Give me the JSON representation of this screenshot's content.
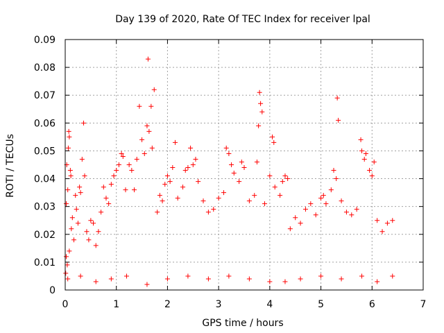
{
  "chart_data": {
    "type": "scatter",
    "title": "Day 139 of 2020, Rate Of TEC Index for receiver lpal",
    "xlabel": "GPS time / hours",
    "ylabel": "ROTI / TECUs",
    "xlim": [
      0,
      7
    ],
    "ylim": [
      0,
      0.09
    ],
    "xticks": [
      0,
      1,
      2,
      3,
      4,
      5,
      6,
      7
    ],
    "xtick_labels": [
      "0",
      "1",
      "2",
      "3",
      "4",
      "5",
      "6",
      "7"
    ],
    "yticks": [
      0,
      0.01,
      0.02,
      0.03,
      0.04,
      0.05,
      0.06,
      0.07,
      0.08,
      0.09
    ],
    "ytick_labels": [
      "0",
      "0.01",
      "0.02",
      "0.03",
      "0.04",
      "0.05",
      "0.06",
      "0.07",
      "0.08",
      "0.09"
    ],
    "grid": true,
    "marker": "plus",
    "series": [
      {
        "color": "#ff0000",
        "points": [
          [
            0.01,
            0.006
          ],
          [
            0.02,
            0.012
          ],
          [
            0.02,
            0.031
          ],
          [
            0.03,
            0.045
          ],
          [
            0.04,
            0.009
          ],
          [
            0.05,
            0.036
          ],
          [
            0.06,
            0.051
          ],
          [
            0.07,
            0.057
          ],
          [
            0.08,
            0.055
          ],
          [
            0.08,
            0.014
          ],
          [
            0.1,
            0.043
          ],
          [
            0.11,
            0.041
          ],
          [
            0.12,
            0.022
          ],
          [
            0.14,
            0.026
          ],
          [
            0.17,
            0.018
          ],
          [
            0.2,
            0.034
          ],
          [
            0.22,
            0.029
          ],
          [
            0.25,
            0.024
          ],
          [
            0.28,
            0.037
          ],
          [
            0.3,
            0.035
          ],
          [
            0.33,
            0.047
          ],
          [
            0.36,
            0.06
          ],
          [
            0.38,
            0.041
          ],
          [
            0.42,
            0.021
          ],
          [
            0.46,
            0.018
          ],
          [
            0.5,
            0.025
          ],
          [
            0.55,
            0.024
          ],
          [
            0.6,
            0.016
          ],
          [
            0.65,
            0.021
          ],
          [
            0.7,
            0.028
          ],
          [
            0.75,
            0.037
          ],
          [
            0.8,
            0.033
          ],
          [
            0.85,
            0.031
          ],
          [
            0.9,
            0.038
          ],
          [
            0.95,
            0.041
          ],
          [
            1.0,
            0.043
          ],
          [
            1.05,
            0.045
          ],
          [
            1.1,
            0.049
          ],
          [
            1.13,
            0.048
          ],
          [
            1.18,
            0.036
          ],
          [
            1.25,
            0.045
          ],
          [
            1.3,
            0.043
          ],
          [
            1.35,
            0.036
          ],
          [
            1.4,
            0.047
          ],
          [
            1.45,
            0.066
          ],
          [
            1.5,
            0.054
          ],
          [
            1.55,
            0.049
          ],
          [
            1.6,
            0.059
          ],
          [
            1.62,
            0.083
          ],
          [
            1.64,
            0.057
          ],
          [
            1.68,
            0.066
          ],
          [
            1.7,
            0.051
          ],
          [
            1.74,
            0.072
          ],
          [
            1.8,
            0.028
          ],
          [
            1.85,
            0.034
          ],
          [
            1.9,
            0.032
          ],
          [
            1.95,
            0.038
          ],
          [
            2.0,
            0.041
          ],
          [
            2.05,
            0.039
          ],
          [
            2.1,
            0.044
          ],
          [
            2.15,
            0.053
          ],
          [
            2.2,
            0.033
          ],
          [
            2.3,
            0.037
          ],
          [
            2.35,
            0.043
          ],
          [
            2.4,
            0.044
          ],
          [
            2.45,
            0.051
          ],
          [
            2.5,
            0.045
          ],
          [
            2.55,
            0.047
          ],
          [
            2.6,
            0.039
          ],
          [
            2.7,
            0.032
          ],
          [
            2.8,
            0.028
          ],
          [
            2.9,
            0.029
          ],
          [
            3.0,
            0.033
          ],
          [
            3.1,
            0.035
          ],
          [
            3.15,
            0.051
          ],
          [
            3.2,
            0.049
          ],
          [
            3.25,
            0.045
          ],
          [
            3.3,
            0.042
          ],
          [
            3.4,
            0.039
          ],
          [
            3.45,
            0.046
          ],
          [
            3.5,
            0.044
          ],
          [
            3.6,
            0.032
          ],
          [
            3.7,
            0.034
          ],
          [
            3.75,
            0.046
          ],
          [
            3.78,
            0.059
          ],
          [
            3.8,
            0.071
          ],
          [
            3.82,
            0.067
          ],
          [
            3.85,
            0.064
          ],
          [
            3.9,
            0.031
          ],
          [
            4.0,
            0.041
          ],
          [
            4.05,
            0.055
          ],
          [
            4.08,
            0.053
          ],
          [
            4.1,
            0.037
          ],
          [
            4.2,
            0.034
          ],
          [
            4.25,
            0.039
          ],
          [
            4.3,
            0.041
          ],
          [
            4.35,
            0.04
          ],
          [
            4.4,
            0.022
          ],
          [
            4.5,
            0.026
          ],
          [
            4.6,
            0.024
          ],
          [
            4.7,
            0.029
          ],
          [
            4.8,
            0.031
          ],
          [
            4.9,
            0.027
          ],
          [
            5.0,
            0.033
          ],
          [
            5.05,
            0.034
          ],
          [
            5.1,
            0.031
          ],
          [
            5.2,
            0.036
          ],
          [
            5.25,
            0.043
          ],
          [
            5.3,
            0.04
          ],
          [
            5.32,
            0.069
          ],
          [
            5.34,
            0.061
          ],
          [
            5.4,
            0.032
          ],
          [
            5.5,
            0.028
          ],
          [
            5.6,
            0.027
          ],
          [
            5.7,
            0.029
          ],
          [
            5.78,
            0.054
          ],
          [
            5.8,
            0.05
          ],
          [
            5.85,
            0.047
          ],
          [
            5.88,
            0.049
          ],
          [
            5.95,
            0.043
          ],
          [
            6.0,
            0.041
          ],
          [
            6.04,
            0.046
          ],
          [
            6.1,
            0.025
          ],
          [
            6.2,
            0.021
          ],
          [
            6.3,
            0.024
          ],
          [
            6.4,
            0.025
          ],
          [
            0.05,
            0.004
          ],
          [
            0.3,
            0.005
          ],
          [
            0.6,
            0.003
          ],
          [
            0.9,
            0.004
          ],
          [
            1.2,
            0.005
          ],
          [
            1.6,
            0.002
          ],
          [
            2.0,
            0.004
          ],
          [
            2.4,
            0.005
          ],
          [
            2.8,
            0.004
          ],
          [
            3.2,
            0.005
          ],
          [
            3.6,
            0.004
          ],
          [
            4.0,
            0.003
          ],
          [
            4.3,
            0.003
          ],
          [
            4.6,
            0.004
          ],
          [
            5.0,
            0.005
          ],
          [
            5.4,
            0.004
          ],
          [
            5.8,
            0.005
          ],
          [
            6.1,
            0.003
          ],
          [
            6.4,
            0.005
          ]
        ]
      }
    ]
  }
}
